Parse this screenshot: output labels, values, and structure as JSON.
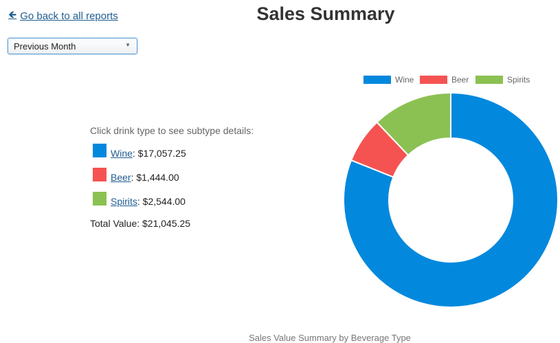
{
  "nav": {
    "back_label": "Go back to all reports",
    "back_icon": "arrow-left-icon"
  },
  "header": {
    "title": "Sales Summary"
  },
  "filter": {
    "selected": "Previous Month"
  },
  "details": {
    "hint": "Click drink type to see subtype details:",
    "items": [
      {
        "label": "Wine",
        "value": ": $17,057.25",
        "color": "#0288dd"
      },
      {
        "label": "Beer",
        "value": ": $1,444.00",
        "color": "#f55352"
      },
      {
        "label": "Spirits",
        "value": ": $2,544.00",
        "color": "#8bc152"
      }
    ],
    "total": "Total Value: $21,045.25"
  },
  "chart_data": {
    "type": "pie",
    "style": "doughnut",
    "categories": [
      "Wine",
      "Beer",
      "Spirits"
    ],
    "values": [
      17057.25,
      1444.0,
      2544.0
    ],
    "colors": [
      "#0288dd",
      "#f55352",
      "#8bc152"
    ],
    "legend": "top",
    "title": "Sales Value Summary by Beverage Type"
  }
}
